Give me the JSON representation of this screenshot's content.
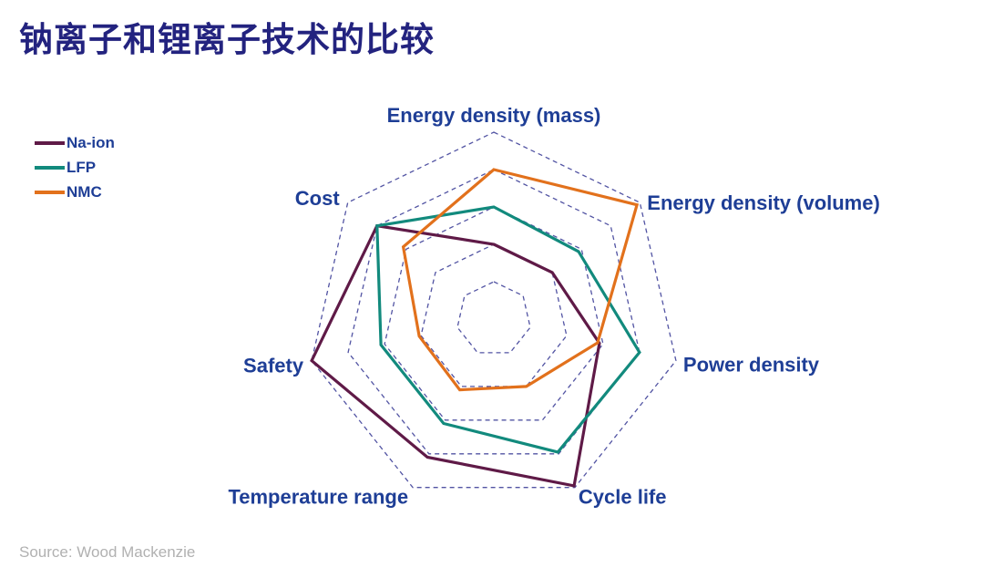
{
  "title": "钠离子和锂离子技术的比较",
  "source": "Source: Wood Mackenzie",
  "colors": {
    "background": "#ffffff",
    "title": "#23237f",
    "axis_label": "#1e3e96",
    "grid": "#5254a3",
    "source_text": "#b1b1b1",
    "na_ion": "#5f1a47",
    "lfp": "#128a7d",
    "nmc": "#e2711c"
  },
  "legend": {
    "items": [
      "Na-ion",
      "LFP",
      "NMC"
    ]
  },
  "chart_data": {
    "type": "radar",
    "title": "钠离子和锂离子技术的比较",
    "axes": [
      "Energy density (mass)",
      "Energy density (volume)",
      "Power density",
      "Cycle life",
      "Temperature range",
      "Safety",
      "Cost"
    ],
    "scale": {
      "min": 0,
      "max": 1,
      "rings": [
        0.2,
        0.4,
        0.6,
        0.8,
        1.0
      ],
      "grid_style": "dashed",
      "spokes": false
    },
    "legend_position": "top-left",
    "series": [
      {
        "name": "Na-ion",
        "color": "#5f1a47",
        "values": [
          0.4,
          0.4,
          0.58,
          0.99,
          0.82,
          1.0,
          0.8
        ]
      },
      {
        "name": "LFP",
        "color": "#128a7d",
        "values": [
          0.6,
          0.58,
          0.8,
          0.79,
          0.62,
          0.62,
          0.8
        ]
      },
      {
        "name": "NMC",
        "color": "#e2711c",
        "values": [
          0.8,
          0.98,
          0.57,
          0.4,
          0.42,
          0.41,
          0.62
        ]
      }
    ]
  }
}
